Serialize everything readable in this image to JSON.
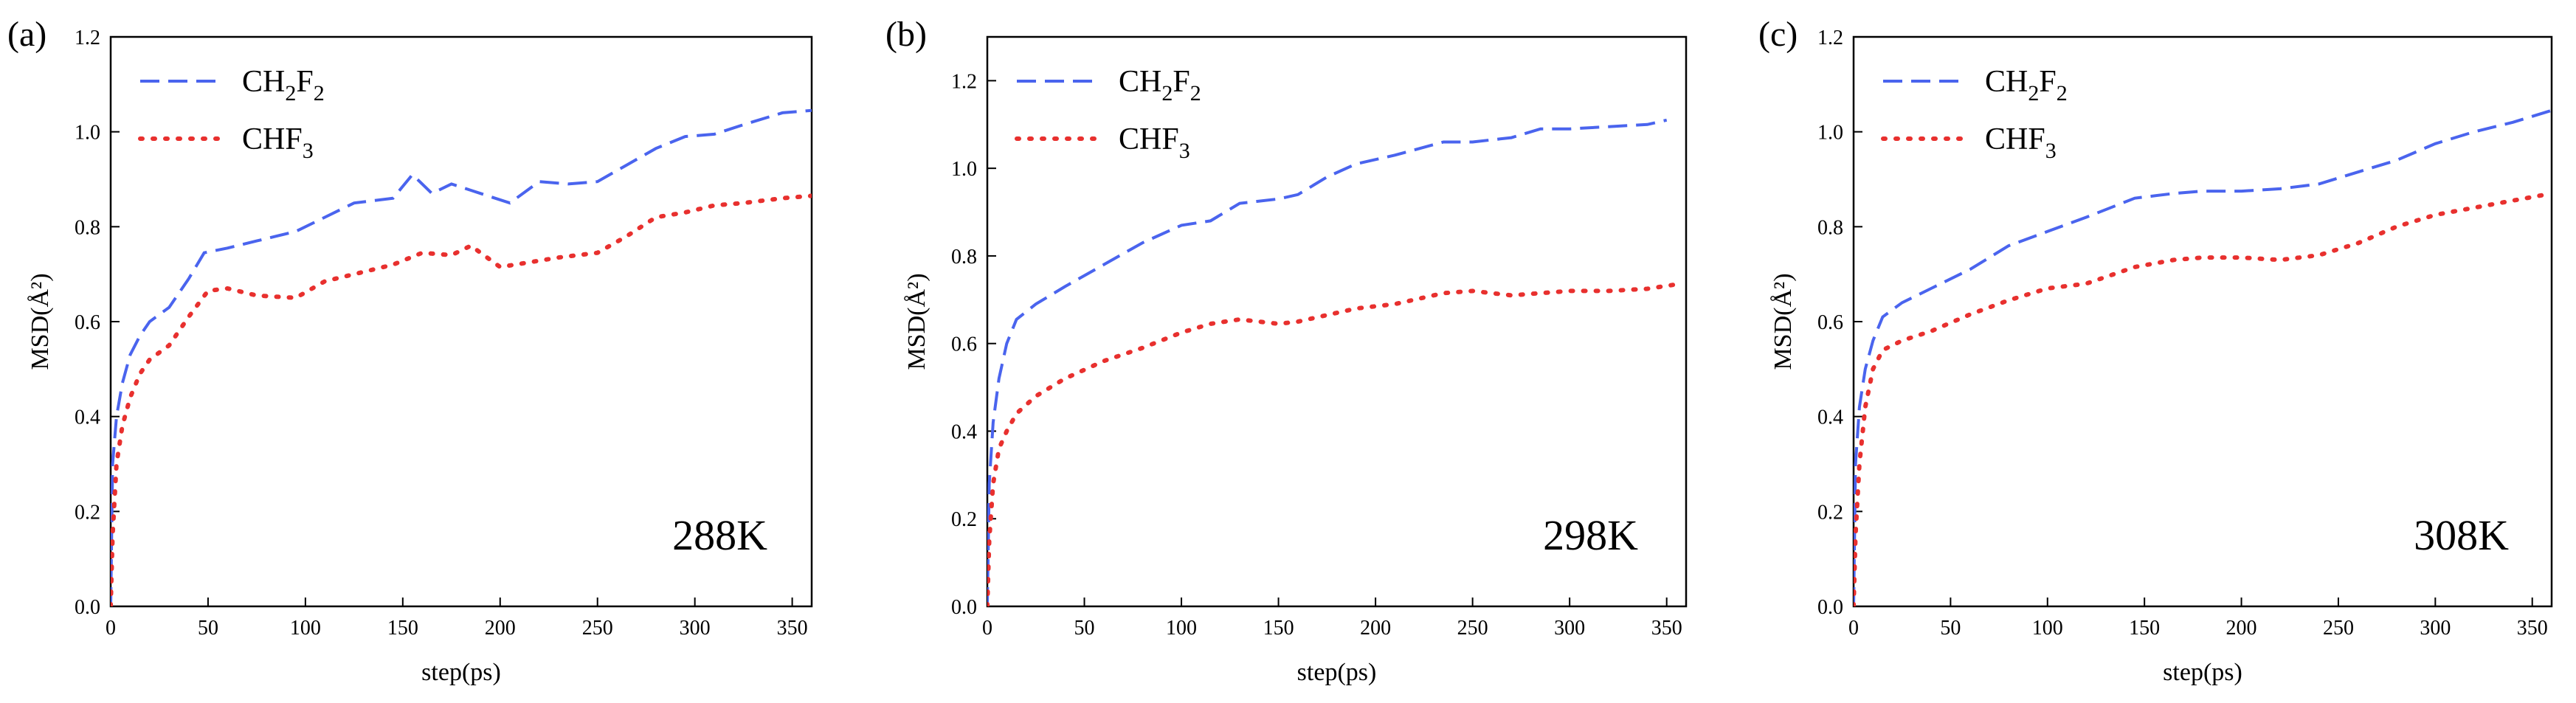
{
  "chart_data": [
    {
      "type": "line",
      "panel_label": "(a)",
      "annotation": "288K",
      "xlabel": "step(ps)",
      "ylabel": "MSD(Å²)",
      "xlim": [
        0,
        360
      ],
      "ylim": [
        0,
        1.2
      ],
      "xticks": [
        "0",
        "50",
        "100",
        "150",
        "200",
        "250",
        "300",
        "350"
      ],
      "yticks": [
        "0.0",
        "0.2",
        "0.4",
        "0.6",
        "0.8",
        "1.0",
        "1.2"
      ],
      "legend_position": "top-left",
      "series": [
        {
          "name": "CH2F2",
          "name_main": "CH",
          "name_sub1": "2",
          "name_mid": "F",
          "name_sub2": "2",
          "color": "#4a64ee",
          "style": "dashed",
          "x": [
            0,
            1,
            3,
            6,
            10,
            15,
            20,
            30,
            40,
            48,
            60,
            75,
            95,
            110,
            125,
            145,
            155,
            165,
            175,
            190,
            205,
            220,
            235,
            250,
            265,
            280,
            295,
            310,
            325,
            345,
            360
          ],
          "y": [
            0,
            0.3,
            0.4,
            0.47,
            0.53,
            0.57,
            0.6,
            0.63,
            0.69,
            0.745,
            0.755,
            0.77,
            0.79,
            0.82,
            0.85,
            0.86,
            0.91,
            0.87,
            0.89,
            0.87,
            0.85,
            0.895,
            0.89,
            0.895,
            0.93,
            0.965,
            0.99,
            0.995,
            1.015,
            1.04,
            1.045
          ]
        },
        {
          "name": "CHF3",
          "name_main": "CHF",
          "name_sub1": "3",
          "color": "#e8302e",
          "style": "dotted",
          "x": [
            0,
            1,
            3,
            6,
            10,
            15,
            20,
            30,
            40,
            50,
            60,
            75,
            95,
            110,
            125,
            145,
            160,
            175,
            185,
            200,
            215,
            230,
            250,
            265,
            280,
            295,
            310,
            325,
            345,
            360
          ],
          "y": [
            0,
            0.15,
            0.3,
            0.38,
            0.44,
            0.49,
            0.52,
            0.55,
            0.61,
            0.665,
            0.67,
            0.655,
            0.65,
            0.685,
            0.7,
            0.72,
            0.745,
            0.74,
            0.76,
            0.715,
            0.725,
            0.735,
            0.745,
            0.78,
            0.82,
            0.83,
            0.845,
            0.85,
            0.86,
            0.865
          ]
        }
      ]
    },
    {
      "type": "line",
      "panel_label": "(b)",
      "annotation": "298K",
      "xlabel": "step(ps)",
      "ylabel": "MSD(Å²)",
      "xlim": [
        0,
        360
      ],
      "ylim": [
        0,
        1.3
      ],
      "xticks": [
        "0",
        "50",
        "100",
        "150",
        "200",
        "250",
        "300",
        "350"
      ],
      "yticks": [
        "0.0",
        "0.2",
        "0.4",
        "0.6",
        "0.8",
        "1.0",
        "1.2"
      ],
      "legend_position": "top-left",
      "series": [
        {
          "name": "CH2F2",
          "name_main": "CH",
          "name_sub1": "2",
          "name_mid": "F",
          "name_sub2": "2",
          "color": "#4a64ee",
          "style": "dashed",
          "x": [
            0,
            1,
            3,
            6,
            10,
            15,
            25,
            40,
            60,
            80,
            100,
            115,
            130,
            150,
            160,
            175,
            190,
            210,
            235,
            250,
            270,
            285,
            300,
            320,
            340,
            350
          ],
          "y": [
            0,
            0.28,
            0.42,
            0.52,
            0.6,
            0.655,
            0.69,
            0.73,
            0.78,
            0.83,
            0.87,
            0.88,
            0.92,
            0.93,
            0.94,
            0.98,
            1.01,
            1.03,
            1.06,
            1.06,
            1.07,
            1.09,
            1.09,
            1.095,
            1.1,
            1.11
          ]
        },
        {
          "name": "CHF3",
          "name_main": "CHF",
          "name_sub1": "3",
          "color": "#e8302e",
          "style": "dotted",
          "x": [
            0,
            1,
            3,
            6,
            10,
            15,
            25,
            40,
            60,
            80,
            100,
            115,
            130,
            150,
            160,
            175,
            190,
            210,
            235,
            250,
            270,
            285,
            300,
            320,
            340,
            355
          ],
          "y": [
            0,
            0.15,
            0.28,
            0.36,
            0.4,
            0.44,
            0.48,
            0.52,
            0.56,
            0.59,
            0.625,
            0.645,
            0.655,
            0.645,
            0.65,
            0.665,
            0.68,
            0.69,
            0.715,
            0.72,
            0.71,
            0.715,
            0.72,
            0.72,
            0.725,
            0.735
          ]
        }
      ]
    },
    {
      "type": "line",
      "panel_label": "(c)",
      "annotation": "308K",
      "xlabel": "step(ps)",
      "ylabel": "MSD(Å²)",
      "xlim": [
        0,
        360
      ],
      "ylim": [
        0,
        1.2
      ],
      "xticks": [
        "0",
        "50",
        "100",
        "150",
        "200",
        "250",
        "300",
        "350"
      ],
      "yticks": [
        "0.0",
        "0.2",
        "0.4",
        "0.6",
        "0.8",
        "1.0",
        "1.2"
      ],
      "legend_position": "top-left",
      "series": [
        {
          "name": "CH2F2",
          "name_main": "CH",
          "name_sub1": "2",
          "name_mid": "F",
          "name_sub2": "2",
          "color": "#4a64ee",
          "style": "dashed",
          "x": [
            0,
            1,
            3,
            6,
            10,
            15,
            25,
            40,
            60,
            80,
            100,
            120,
            145,
            165,
            180,
            200,
            220,
            240,
            260,
            280,
            300,
            320,
            340,
            360
          ],
          "y": [
            0,
            0.3,
            0.42,
            0.5,
            0.56,
            0.61,
            0.64,
            0.67,
            0.71,
            0.76,
            0.79,
            0.82,
            0.86,
            0.87,
            0.875,
            0.875,
            0.88,
            0.89,
            0.915,
            0.94,
            0.975,
            1.0,
            1.02,
            1.045
          ]
        },
        {
          "name": "CHF3",
          "name_main": "CHF",
          "name_sub1": "3",
          "color": "#e8302e",
          "style": "dotted",
          "x": [
            0,
            1,
            3,
            6,
            10,
            15,
            25,
            40,
            60,
            80,
            100,
            120,
            145,
            165,
            180,
            200,
            220,
            240,
            260,
            280,
            300,
            320,
            340,
            360
          ],
          "y": [
            0,
            0.15,
            0.3,
            0.42,
            0.5,
            0.54,
            0.56,
            0.58,
            0.615,
            0.645,
            0.67,
            0.68,
            0.715,
            0.73,
            0.735,
            0.735,
            0.73,
            0.74,
            0.765,
            0.8,
            0.825,
            0.84,
            0.855,
            0.87
          ]
        }
      ]
    }
  ]
}
